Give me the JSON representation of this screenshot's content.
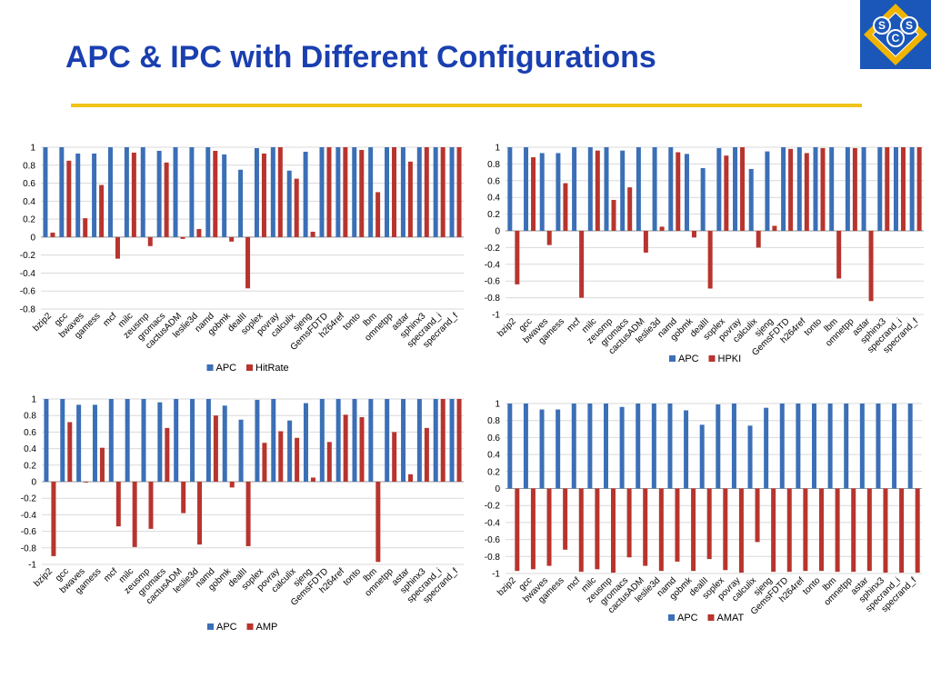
{
  "slide": {
    "title": "APC & IPC with Different Configurations"
  },
  "logo": {
    "letters": [
      "S",
      "S",
      "C"
    ],
    "colors": {
      "bg": "#1b57b8",
      "diamond": "#f0b400",
      "letter_fill": "#1b57b8",
      "letter_text": "#ffffff"
    }
  },
  "colors": {
    "title": "#1a3fb0",
    "rule": "#f0c419",
    "apc": "#3b6fb6",
    "secondary": "#b8342e",
    "grid": "#d9d9d9"
  },
  "chart_data": [
    {
      "type": "bar",
      "categories": [
        "bzip2",
        "gcc",
        "bwaves",
        "gamess",
        "mcf",
        "milc",
        "zeusmp",
        "gromacs",
        "cactusADM",
        "leslie3d",
        "namd",
        "gobmk",
        "dealII",
        "soplex",
        "povray",
        "calculix",
        "sjeng",
        "GemsFDTD",
        "h264ref",
        "tonto",
        "lbm",
        "omnetpp",
        "astar",
        "sphinx3",
        "specrand_i",
        "specrand_f"
      ],
      "ylim": [
        -0.8,
        1
      ],
      "yticks": [
        "1",
        "0.8",
        "0.6",
        "0.4",
        "0.2",
        "0",
        "-0.2",
        "-0.4",
        "-0.6",
        "-0.8"
      ],
      "grid": true,
      "legend": "bottom",
      "series": [
        {
          "name": "APC",
          "values": [
            1,
            1,
            0.93,
            0.93,
            1,
            1,
            1,
            0.96,
            1,
            1,
            1,
            0.92,
            0.75,
            0.99,
            1,
            0.74,
            0.95,
            1,
            1,
            1,
            1,
            1,
            1,
            1,
            1,
            1
          ]
        },
        {
          "name": "HitRate",
          "values": [
            0.05,
            0.85,
            0.21,
            0.58,
            -0.24,
            0.94,
            -0.1,
            0.83,
            -0.02,
            0.09,
            0.96,
            -0.05,
            -0.57,
            0.93,
            1,
            0.65,
            0.06,
            1,
            1,
            0.97,
            0.5,
            1,
            0.84,
            1,
            1,
            1
          ]
        }
      ]
    },
    {
      "type": "bar",
      "categories": [
        "bzip2",
        "gcc",
        "bwaves",
        "gamess",
        "mcf",
        "milc",
        "zeusmp",
        "gromacs",
        "cactusADM",
        "leslie3d",
        "namd",
        "gobmk",
        "dealII",
        "soplex",
        "povray",
        "calculix",
        "sjeng",
        "GemsFDTD",
        "h264ref",
        "tonto",
        "lbm",
        "omnetpp",
        "astar",
        "sphinx3",
        "specrand_i",
        "specrand_f"
      ],
      "ylim": [
        -1,
        1
      ],
      "yticks": [
        "1",
        "0.8",
        "0.6",
        "0.4",
        "0.2",
        "0",
        "-0.2",
        "-0.4",
        "-0.6",
        "-0.8",
        "-1"
      ],
      "grid": true,
      "legend": "bottom",
      "series": [
        {
          "name": "APC",
          "values": [
            1,
            1,
            0.93,
            0.93,
            1,
            1,
            1,
            0.96,
            1,
            1,
            1,
            0.92,
            0.75,
            0.99,
            1,
            0.74,
            0.95,
            1,
            1,
            1,
            1,
            1,
            1,
            1,
            1,
            1
          ]
        },
        {
          "name": "HPKI",
          "values": [
            -0.64,
            0.88,
            -0.17,
            0.57,
            -0.8,
            0.96,
            0.37,
            0.52,
            -0.26,
            0.05,
            0.94,
            -0.08,
            -0.69,
            0.9,
            1,
            -0.2,
            0.06,
            0.98,
            0.93,
            0.99,
            -0.57,
            0.99,
            -0.84,
            1,
            1,
            1
          ]
        }
      ]
    },
    {
      "type": "bar",
      "categories": [
        "bzip2",
        "gcc",
        "bwaves",
        "gamess",
        "mcf",
        "milc",
        "zeusmp",
        "gromacs",
        "cactusADM",
        "leslie3d",
        "namd",
        "gobmk",
        "dealII",
        "soplex",
        "povray",
        "calculix",
        "sjeng",
        "GemsFDTD",
        "h264ref",
        "tonto",
        "lbm",
        "omnetpp",
        "astar",
        "sphinx3",
        "specrand_i",
        "specrand_f"
      ],
      "ylim": [
        -1,
        1
      ],
      "yticks": [
        "1",
        "0.8",
        "0.6",
        "0.4",
        "0.2",
        "0",
        "-0.2",
        "-0.4",
        "-0.6",
        "-0.8",
        "-1"
      ],
      "grid": true,
      "legend": "bottom",
      "series": [
        {
          "name": "APC",
          "values": [
            1,
            1,
            0.93,
            0.93,
            1,
            1,
            1,
            0.96,
            1,
            1,
            1,
            0.92,
            0.75,
            0.99,
            1,
            0.74,
            0.95,
            1,
            1,
            1,
            1,
            1,
            1,
            1,
            1,
            1
          ]
        },
        {
          "name": "AMP",
          "values": [
            -0.9,
            0.72,
            -0.01,
            0.41,
            -0.54,
            -0.79,
            -0.57,
            0.65,
            -0.38,
            -0.76,
            0.8,
            -0.07,
            -0.78,
            0.47,
            0.61,
            0.53,
            0.05,
            0.48,
            0.81,
            0.78,
            -0.97,
            0.6,
            0.09,
            0.65,
            1,
            1
          ]
        }
      ]
    },
    {
      "type": "bar",
      "categories": [
        "bzip2",
        "gcc",
        "bwaves",
        "gamess",
        "mcf",
        "milc",
        "zeusmp",
        "gromacs",
        "cactusADM",
        "leslie3d",
        "namd",
        "gobmk",
        "dealII",
        "soplex",
        "povray",
        "calculix",
        "sjeng",
        "GemsFDTD",
        "h264ref",
        "tonto",
        "lbm",
        "omnetpp",
        "astar",
        "sphinx3",
        "specrand_i",
        "specrand_f"
      ],
      "ylim": [
        -1,
        1
      ],
      "yticks": [
        "1",
        "0.8",
        "0.6",
        "0.4",
        "0.2",
        "0",
        "-0.2",
        "-0.4",
        "-0.6",
        "-0.8",
        "-1"
      ],
      "grid": true,
      "legend": "bottom",
      "series": [
        {
          "name": "APC",
          "values": [
            1,
            1,
            0.93,
            0.93,
            1,
            1,
            1,
            0.96,
            1,
            1,
            1,
            0.92,
            0.75,
            0.99,
            1,
            0.74,
            0.95,
            1,
            1,
            1,
            1,
            1,
            1,
            1,
            1,
            1
          ]
        },
        {
          "name": "AMAT",
          "values": [
            -0.97,
            -0.95,
            -0.91,
            -0.72,
            -0.98,
            -0.95,
            -0.99,
            -0.81,
            -0.91,
            -0.97,
            -0.86,
            -0.97,
            -0.83,
            -0.96,
            -0.99,
            -0.63,
            -0.98,
            -0.98,
            -0.97,
            -0.97,
            -0.98,
            -0.98,
            -0.97,
            -0.99,
            -0.99,
            -0.99
          ]
        }
      ]
    }
  ]
}
